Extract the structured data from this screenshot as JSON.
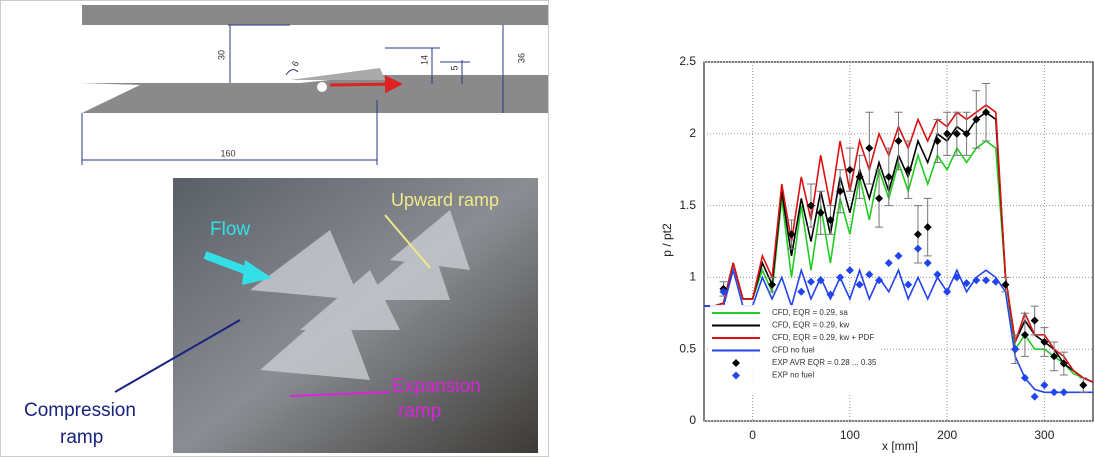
{
  "diagram": {
    "dimensions": [
      "30",
      "6",
      "14",
      "5",
      "36",
      "160"
    ],
    "photo_labels": {
      "upward": "Upward ramp",
      "flow": "Flow",
      "compression": [
        "Compression",
        "ramp"
      ],
      "expansion": [
        "Expansion",
        "ramp"
      ]
    }
  },
  "chart_data": {
    "type": "line",
    "xlabel": "x [mm]",
    "ylabel": "p / pt2",
    "xlim": [
      -50,
      350
    ],
    "ylim": [
      0,
      2.5
    ],
    "xticks": [
      0,
      100,
      200,
      300
    ],
    "yticks": [
      0,
      0.5,
      1,
      1.5,
      2,
      2.5
    ],
    "grid": true,
    "legend": "lower left",
    "x": [
      -50,
      -40,
      -30,
      -20,
      -10,
      0,
      10,
      20,
      30,
      40,
      50,
      60,
      70,
      80,
      90,
      100,
      110,
      120,
      130,
      140,
      150,
      160,
      170,
      180,
      190,
      200,
      210,
      220,
      230,
      240,
      250,
      260,
      270,
      280,
      290,
      300,
      310,
      320,
      330,
      340,
      350
    ],
    "series": [
      {
        "name": "CFD, EQR = 0.29, sa",
        "color": "#22cc22",
        "values": [
          0.8,
          0.8,
          0.82,
          1.1,
          0.85,
          0.85,
          1.05,
          0.9,
          1.55,
          1.0,
          1.5,
          1.05,
          1.5,
          1.1,
          1.55,
          1.3,
          1.7,
          1.4,
          1.75,
          1.55,
          1.8,
          1.6,
          1.85,
          1.65,
          1.85,
          1.75,
          1.9,
          1.8,
          1.9,
          1.95,
          1.9,
          1.0,
          0.5,
          0.6,
          0.5,
          0.5,
          0.45,
          0.4,
          0.33,
          0.3,
          0.27
        ]
      },
      {
        "name": "CFD, EQR = 0.29, kw",
        "color": "#000000",
        "values": [
          0.8,
          0.8,
          0.82,
          1.1,
          0.85,
          0.85,
          1.1,
          0.95,
          1.6,
          1.15,
          1.55,
          1.25,
          1.6,
          1.3,
          1.7,
          1.45,
          1.75,
          1.55,
          1.8,
          1.6,
          1.85,
          1.7,
          1.95,
          1.8,
          2.0,
          1.95,
          2.05,
          2.0,
          2.1,
          2.15,
          2.1,
          1.0,
          0.55,
          0.7,
          0.6,
          0.55,
          0.5,
          0.4,
          0.35,
          0.3,
          0.27
        ]
      },
      {
        "name": "CFD, EQR = 0.29, kw + PDF",
        "color": "#dd1111",
        "values": [
          0.8,
          0.8,
          0.82,
          1.1,
          0.85,
          0.85,
          1.15,
          1.0,
          1.65,
          1.25,
          1.7,
          1.4,
          1.85,
          1.5,
          1.95,
          1.6,
          1.95,
          1.75,
          2.0,
          1.85,
          2.05,
          1.9,
          2.1,
          1.95,
          2.1,
          2.05,
          2.15,
          2.1,
          2.15,
          2.2,
          2.15,
          1.0,
          0.55,
          0.75,
          0.6,
          0.6,
          0.5,
          0.45,
          0.35,
          0.3,
          0.27
        ]
      },
      {
        "name": "CFD no fuel",
        "color": "#2244ee",
        "values": [
          0.8,
          0.8,
          0.8,
          1.05,
          0.8,
          0.8,
          1.0,
          0.85,
          1.0,
          0.8,
          1.05,
          0.85,
          1.0,
          0.85,
          1.0,
          0.85,
          1.05,
          0.85,
          1.0,
          0.9,
          1.05,
          0.85,
          1.0,
          0.85,
          1.0,
          0.9,
          1.05,
          0.9,
          1.0,
          1.05,
          1.0,
          0.9,
          0.45,
          0.3,
          0.22,
          0.2,
          0.2,
          0.2,
          0.2,
          0.2,
          0.2
        ]
      },
      {
        "name": "EXP AVR EQR = 0.28 ... 0.35",
        "type": "scatter",
        "color": "#000000",
        "x": [
          -30,
          20,
          40,
          60,
          70,
          80,
          90,
          100,
          110,
          120,
          130,
          140,
          150,
          160,
          170,
          180,
          190,
          200,
          210,
          220,
          230,
          240,
          260,
          270,
          280,
          290,
          300,
          310,
          320,
          340
        ],
        "values": [
          0.92,
          0.95,
          1.3,
          1.5,
          1.45,
          1.4,
          1.6,
          1.75,
          1.7,
          1.9,
          1.55,
          1.7,
          1.95,
          1.75,
          1.3,
          1.35,
          1.95,
          2.0,
          2.0,
          2.0,
          2.1,
          2.15,
          0.95,
          0.5,
          0.6,
          0.7,
          0.55,
          0.45,
          0.4,
          0.25
        ],
        "errors": [
          0.05,
          0.05,
          0.1,
          0.15,
          0.15,
          0.1,
          0.15,
          0.15,
          0.15,
          0.25,
          0.2,
          0.2,
          0.2,
          0.2,
          0.2,
          0.2,
          0.15,
          0.15,
          0.15,
          0.15,
          0.2,
          0.2,
          0.05,
          0.1,
          0.15,
          0.1,
          0.1,
          0.1,
          0.08,
          0.05
        ]
      },
      {
        "name": "EXP no fuel",
        "type": "scatter",
        "color": "#2244ee",
        "x": [
          -30,
          50,
          60,
          70,
          80,
          90,
          100,
          110,
          120,
          130,
          140,
          150,
          160,
          170,
          180,
          190,
          200,
          210,
          220,
          230,
          240,
          250,
          270,
          280,
          290,
          300,
          310,
          320
        ],
        "values": [
          0.9,
          0.9,
          0.97,
          0.98,
          0.88,
          1.0,
          1.05,
          0.95,
          1.02,
          0.98,
          1.1,
          1.15,
          0.95,
          1.2,
          1.1,
          1.02,
          0.9,
          1.0,
          0.96,
          0.98,
          0.98,
          0.97,
          0.5,
          0.3,
          0.17,
          0.25,
          0.2,
          0.2
        ]
      }
    ]
  }
}
